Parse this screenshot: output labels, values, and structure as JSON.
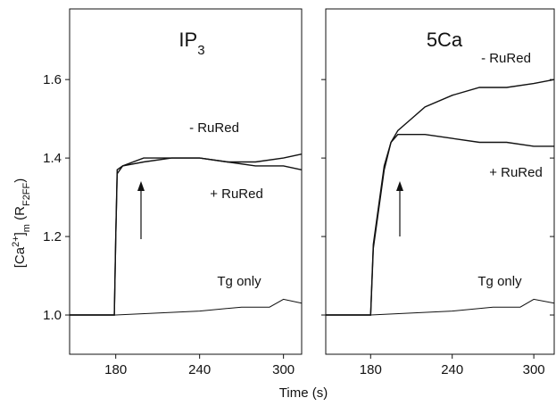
{
  "chart_data": [
    {
      "type": "line",
      "title": "IP",
      "title_subscript": "3",
      "xlim": [
        147,
        313
      ],
      "ylim": [
        0.9,
        1.78
      ],
      "xticks": [
        180,
        240,
        300
      ],
      "yticks": [
        {
          "value": 1,
          "label": "1.0"
        },
        {
          "value": 1.2,
          "label": "1.2"
        },
        {
          "value": 1.4,
          "label": "1.4"
        },
        {
          "value": 1.6,
          "label": "1.6"
        }
      ],
      "series": [
        {
          "name": "- RuRed",
          "color": "#111111",
          "x": [
            147,
            179,
            180,
            181,
            185,
            200,
            220,
            240,
            260,
            280,
            300,
            313
          ],
          "values": [
            1.0,
            1.0,
            1.2,
            1.37,
            1.38,
            1.4,
            1.4,
            1.4,
            1.39,
            1.39,
            1.4,
            1.41
          ]
        },
        {
          "name": "+ RuRed",
          "color": "#111111",
          "x": [
            147,
            179,
            180,
            181,
            185,
            200,
            220,
            240,
            260,
            280,
            300,
            313
          ],
          "values": [
            1.0,
            1.0,
            1.2,
            1.36,
            1.38,
            1.39,
            1.4,
            1.4,
            1.39,
            1.38,
            1.38,
            1.37
          ]
        },
        {
          "name": "Tg only",
          "color": "#111111",
          "x": [
            147,
            180,
            240,
            270,
            290,
            300,
            313
          ],
          "values": [
            1.0,
            1.0,
            1.01,
            1.02,
            1.02,
            1.04,
            1.03
          ]
        }
      ]
    },
    {
      "type": "line",
      "title": "5Ca",
      "xlim": [
        147,
        315
      ],
      "ylim": [
        0.9,
        1.78
      ],
      "xticks": [
        180,
        240,
        300
      ],
      "yticks": [
        1,
        1.2,
        1.4,
        1.6
      ],
      "series": [
        {
          "name": "- RuRed",
          "color": "#111111",
          "x": [
            147,
            180,
            182,
            186,
            190,
            195,
            200,
            210,
            220,
            240,
            260,
            280,
            300,
            315
          ],
          "values": [
            1.0,
            1.0,
            1.18,
            1.28,
            1.38,
            1.44,
            1.47,
            1.5,
            1.53,
            1.56,
            1.58,
            1.58,
            1.59,
            1.6
          ]
        },
        {
          "name": "+ RuRed",
          "color": "#111111",
          "x": [
            147,
            180,
            182,
            186,
            190,
            195,
            200,
            210,
            220,
            240,
            260,
            280,
            300,
            315
          ],
          "values": [
            1.0,
            1.0,
            1.17,
            1.27,
            1.37,
            1.44,
            1.46,
            1.46,
            1.46,
            1.45,
            1.44,
            1.44,
            1.43,
            1.43
          ]
        },
        {
          "name": "Tg only",
          "color": "#111111",
          "x": [
            147,
            180,
            240,
            270,
            290,
            300,
            315
          ],
          "values": [
            1.0,
            1.0,
            1.01,
            1.02,
            1.02,
            1.04,
            1.03
          ]
        }
      ]
    }
  ],
  "xlabel": "Time (s)",
  "ylabel": [
    {
      "text": "[Ca"
    },
    {
      "text": "2+",
      "sup": true
    },
    {
      "text": "]"
    },
    {
      "text": "m",
      "sub": true
    },
    {
      "text": " (R"
    },
    {
      "text": "F2FF",
      "sub": true
    },
    {
      "text": ")"
    }
  ]
}
